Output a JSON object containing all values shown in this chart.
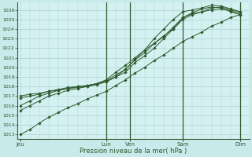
{
  "title": "Pression niveau de la mer( hPa )",
  "background_color": "#c8eaea",
  "plot_bg_color": "#d4f0f0",
  "grid_color": "#b0d8d8",
  "line_color": "#2d5a2d",
  "marker_color": "#2d5a2d",
  "ylim": [
    1012.5,
    1026.8
  ],
  "yticks": [
    1013,
    1014,
    1015,
    1016,
    1017,
    1018,
    1019,
    1020,
    1021,
    1022,
    1023,
    1024,
    1025,
    1026
  ],
  "x_day_labels": [
    "Jeu",
    "Lun",
    "Ven",
    "Sam",
    "Dim"
  ],
  "x_day_positions": [
    0,
    9,
    11.5,
    17,
    23
  ],
  "vlines_x": [
    9,
    11.5,
    17,
    23
  ],
  "xlim": [
    -0.3,
    24
  ],
  "lines": [
    {
      "x": [
        0,
        1,
        2,
        3,
        4,
        5,
        6,
        7,
        8,
        9,
        10,
        11,
        12,
        13,
        14,
        15,
        16,
        17,
        18,
        19,
        20,
        21,
        22,
        23
      ],
      "y": [
        1013.0,
        1013.5,
        1014.2,
        1014.8,
        1015.3,
        1015.8,
        1016.2,
        1016.7,
        1017.1,
        1017.5,
        1018.1,
        1018.7,
        1019.4,
        1020.0,
        1020.7,
        1021.3,
        1022.0,
        1022.7,
        1023.2,
        1023.7,
        1024.3,
        1024.7,
        1025.2,
        1025.5
      ]
    },
    {
      "x": [
        0,
        1,
        2,
        3,
        4,
        5,
        6,
        7,
        8,
        9,
        10,
        11,
        12,
        13,
        14,
        15,
        16,
        17,
        18,
        19,
        20,
        21,
        22,
        23
      ],
      "y": [
        1015.5,
        1016.0,
        1016.5,
        1017.0,
        1017.3,
        1017.6,
        1017.8,
        1018.0,
        1018.3,
        1018.7,
        1019.5,
        1020.2,
        1021.0,
        1021.8,
        1022.5,
        1023.3,
        1024.0,
        1025.0,
        1025.5,
        1025.8,
        1026.0,
        1026.1,
        1025.9,
        1025.5
      ]
    },
    {
      "x": [
        0,
        1,
        2,
        3,
        4,
        5,
        6,
        7,
        8,
        9,
        10,
        11,
        12,
        13,
        14,
        15,
        16,
        17,
        18,
        19,
        20,
        21,
        22,
        23
      ],
      "y": [
        1016.0,
        1016.5,
        1017.0,
        1017.3,
        1017.6,
        1017.8,
        1018.0,
        1018.1,
        1018.3,
        1018.6,
        1019.2,
        1019.8,
        1020.8,
        1021.5,
        1022.5,
        1023.2,
        1024.2,
        1025.2,
        1025.6,
        1025.8,
        1026.2,
        1026.3,
        1026.0,
        1025.7
      ]
    },
    {
      "x": [
        0,
        1,
        2,
        3,
        4,
        5,
        6,
        7,
        8,
        9,
        10,
        11,
        12,
        13,
        14,
        15,
        16,
        17,
        18,
        19,
        20,
        21,
        22,
        23
      ],
      "y": [
        1016.8,
        1017.0,
        1017.2,
        1017.5,
        1017.7,
        1017.9,
        1018.0,
        1018.1,
        1018.3,
        1018.5,
        1019.0,
        1019.5,
        1020.5,
        1021.2,
        1022.0,
        1023.0,
        1024.0,
        1025.2,
        1025.7,
        1026.1,
        1026.3,
        1026.2,
        1025.8,
        1025.5
      ]
    },
    {
      "x": [
        0,
        1,
        2,
        3,
        4,
        5,
        6,
        7,
        8,
        9,
        10,
        11,
        12,
        13,
        14,
        15,
        16,
        17,
        18,
        19,
        20,
        21,
        22,
        23
      ],
      "y": [
        1017.0,
        1017.2,
        1017.3,
        1017.5,
        1017.6,
        1017.8,
        1017.9,
        1018.0,
        1018.2,
        1018.5,
        1019.0,
        1019.8,
        1020.8,
        1021.8,
        1023.0,
        1024.0,
        1025.0,
        1025.8,
        1026.0,
        1026.2,
        1026.5,
        1026.4,
        1026.1,
        1025.8
      ]
    }
  ]
}
